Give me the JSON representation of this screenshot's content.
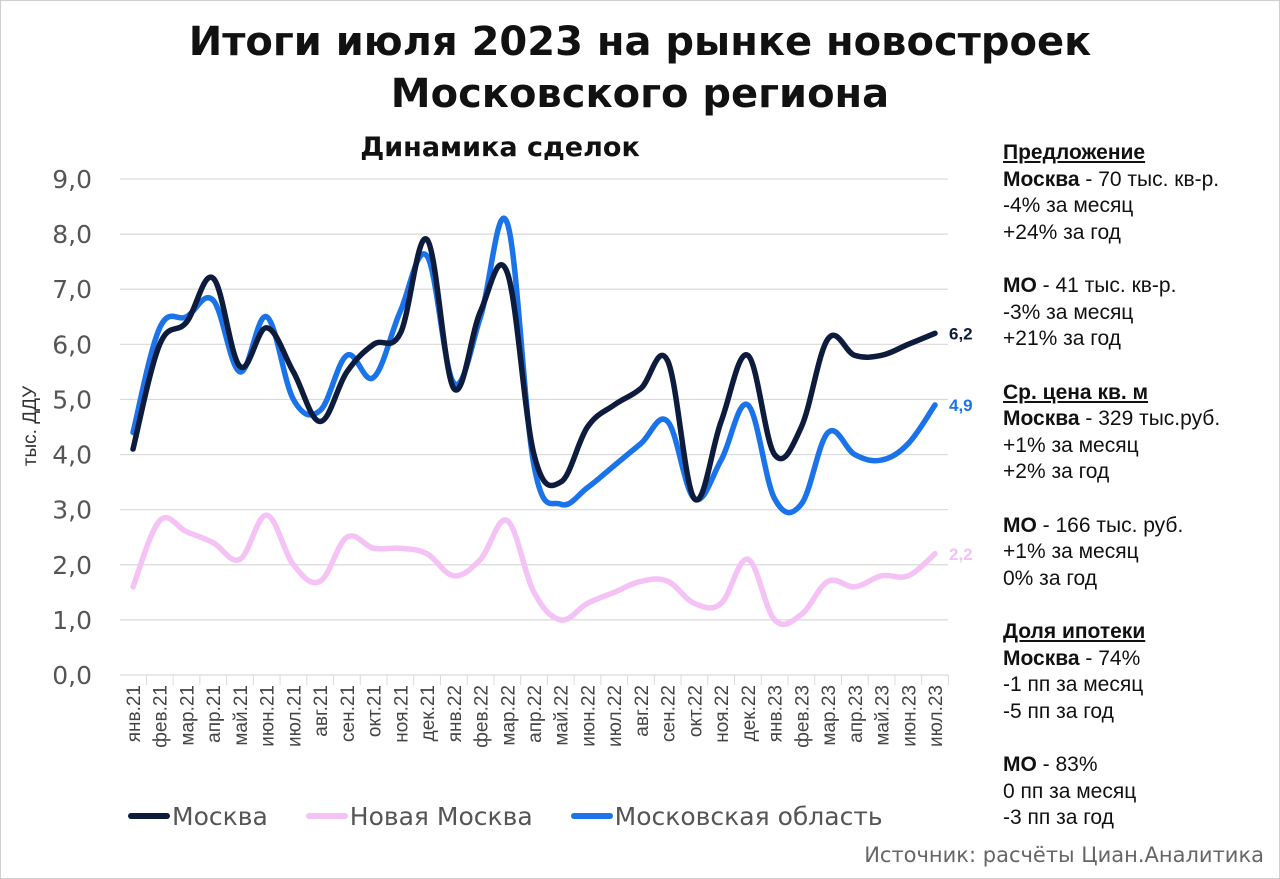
{
  "title_line1": "Итоги июля 2023 на рынке новостроек",
  "title_line2": "Московского региона",
  "chart_data": {
    "type": "line",
    "title": "Динамика сделок",
    "ylabel": "тыс. ДДУ",
    "xlabel": "",
    "ylim": [
      0,
      9
    ],
    "yticks": [
      "0,0",
      "1,0",
      "2,0",
      "3,0",
      "4,0",
      "5,0",
      "6,0",
      "7,0",
      "8,0",
      "9,0"
    ],
    "grid": "horizontal",
    "legend_position": "bottom",
    "categories": [
      "янв.21",
      "фев.21",
      "мар.21",
      "апр.21",
      "май.21",
      "июн.21",
      "июл.21",
      "авг.21",
      "сен.21",
      "окт.21",
      "ноя.21",
      "дек.21",
      "янв.22",
      "фев.22",
      "мар.22",
      "апр.22",
      "май.22",
      "июн.22",
      "июл.22",
      "авг.22",
      "сен.22",
      "окт.22",
      "ноя.22",
      "дек.22",
      "янв.23",
      "фев.23",
      "мар.23",
      "апр.23",
      "май.23",
      "июн.23",
      "июл.23"
    ],
    "series": [
      {
        "name": "Москва",
        "color": "#0d1b3d",
        "values": [
          4.1,
          6.0,
          6.4,
          7.2,
          5.6,
          6.3,
          5.5,
          4.6,
          5.5,
          6.0,
          6.2,
          7.9,
          5.2,
          6.6,
          7.3,
          4.0,
          3.5,
          4.5,
          4.9,
          5.2,
          5.7,
          3.2,
          4.6,
          5.8,
          4.0,
          4.5,
          6.1,
          5.8,
          5.8,
          6.0,
          6.2
        ],
        "end_label": "6,2"
      },
      {
        "name": "Новая Москва",
        "color": "#f5c2f5",
        "values": [
          1.6,
          2.8,
          2.6,
          2.4,
          2.1,
          2.9,
          2.0,
          1.7,
          2.5,
          2.3,
          2.3,
          2.2,
          1.8,
          2.1,
          2.8,
          1.5,
          1.0,
          1.3,
          1.5,
          1.7,
          1.7,
          1.3,
          1.3,
          2.1,
          1.0,
          1.1,
          1.7,
          1.6,
          1.8,
          1.8,
          2.2
        ],
        "end_label": "2,2"
      },
      {
        "name": "Московская область",
        "color": "#1a73e8",
        "values": [
          4.4,
          6.3,
          6.5,
          6.8,
          5.5,
          6.5,
          5.0,
          4.8,
          5.8,
          5.4,
          6.6,
          7.6,
          5.3,
          6.5,
          8.2,
          3.8,
          3.1,
          3.4,
          3.8,
          4.2,
          4.6,
          3.2,
          3.9,
          4.9,
          3.2,
          3.1,
          4.4,
          4.0,
          3.9,
          4.2,
          4.9
        ],
        "end_label": "4,9"
      }
    ]
  },
  "sidebar": {
    "supply": {
      "head": "Предложение",
      "moscow_region": "Москва",
      "moscow_value": " - 70 тыс. кв-р.",
      "moscow_month": "-4% за месяц",
      "moscow_year": "+24% за год",
      "mo_region": "МО",
      "mo_value": " - 41 тыс. кв-р.",
      "mo_month": "-3% за месяц",
      "mo_year": "+21% за год"
    },
    "price": {
      "head": "Ср. цена кв. м",
      "moscow_region": "Москва",
      "moscow_value": " - 329 тыс.руб.",
      "moscow_month": "+1% за месяц",
      "moscow_year": "+2% за год",
      "mo_region": "МО",
      "mo_value": " - 166 тыс. руб.",
      "mo_month": "+1% за месяц",
      "mo_year": "0% за год"
    },
    "mortgage": {
      "head": "Доля ипотеки",
      "moscow_region": "Москва",
      "moscow_value": " - 74%",
      "moscow_month": "-1 пп за месяц",
      "moscow_year": "-5 пп за год",
      "mo_region": "МО",
      "mo_value": " - 83%",
      "mo_month": "0 пп за месяц",
      "mo_year": "-3 пп за год"
    }
  },
  "source": "Источник: расчёты Циан.Аналитика"
}
